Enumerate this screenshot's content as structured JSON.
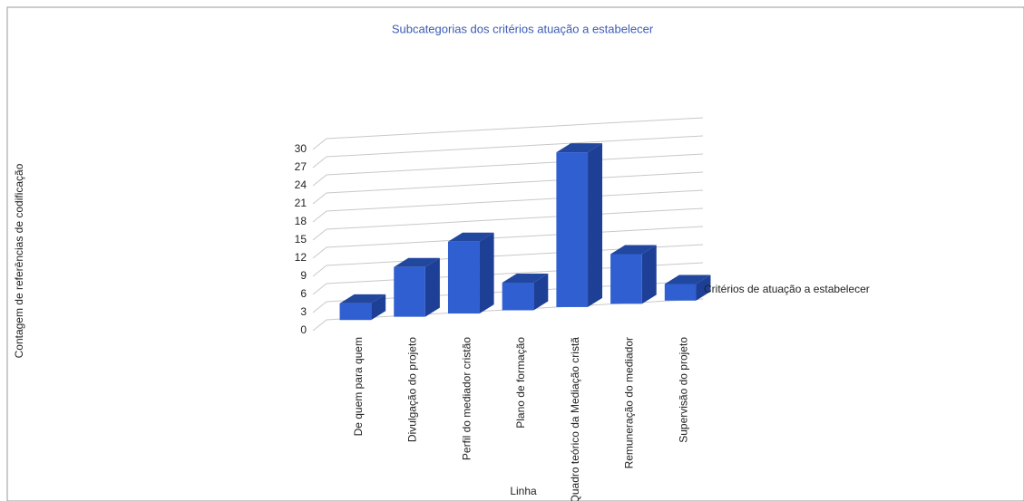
{
  "chart_data": {
    "type": "bar",
    "title": "Subcategorias dos critérios atuação a estabelecer",
    "y_label": "Contagem de referências de codificação",
    "x_label": "Linha",
    "categories": [
      "De quem para quem",
      "Divulgação do projeto",
      "Perfil do mediador cristão",
      "Plano de formação",
      "Quadro teórico da Mediação cristã",
      "Remuneração do mediador",
      "Supervisão do projeto"
    ],
    "series": [
      {
        "name": "Critérios de atuação a estabelecer",
        "color": "#2f5fd0",
        "values": [
          3,
          9,
          13,
          5,
          28,
          9,
          3
        ]
      }
    ],
    "ylim": [
      0,
      30
    ],
    "yticks": [
      0,
      3,
      6,
      9,
      12,
      15,
      18,
      21,
      24,
      27,
      30
    ],
    "grid": true
  }
}
